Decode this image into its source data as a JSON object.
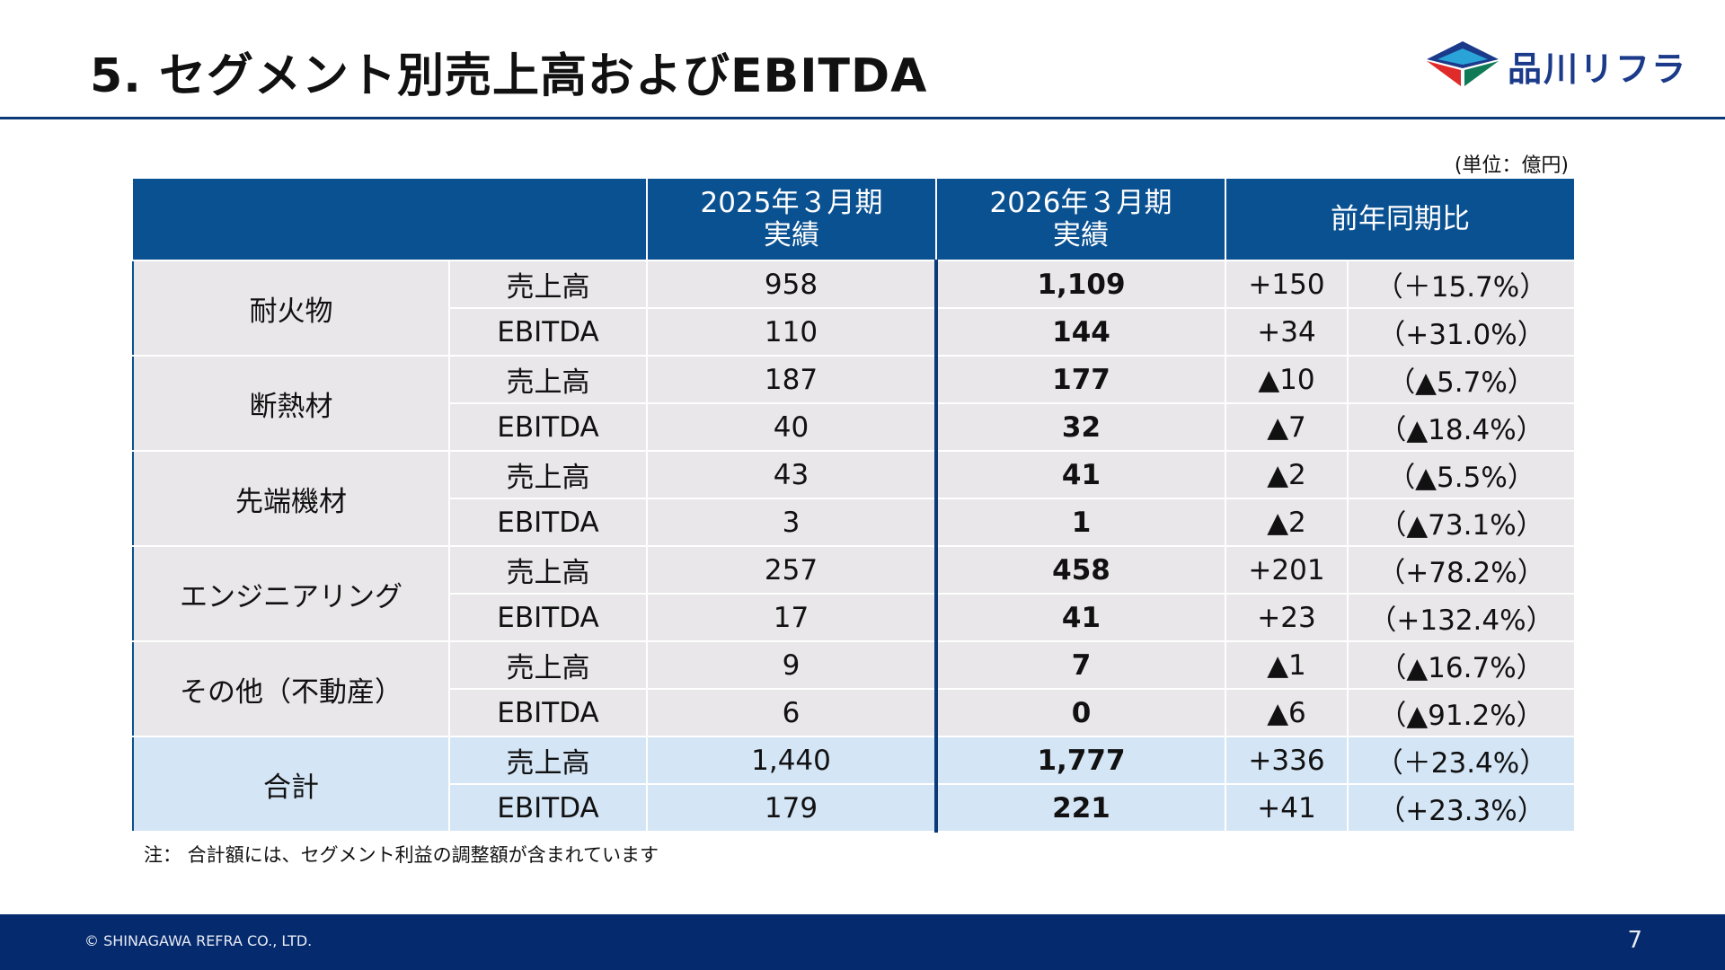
{
  "title": "5. セグメント別売上高およびEBITDA",
  "logo": {
    "text": "品川リフラ",
    "colors": [
      "#1b3a8a",
      "#2aa3d8",
      "#e02b2b",
      "#0f7a55"
    ]
  },
  "unit": "(単位：億円)",
  "table": {
    "headers": {
      "fy2025": {
        "line1": "2025年３月期",
        "line2": "実績"
      },
      "fy2026": {
        "line1": "2026年３月期",
        "line2": "実績"
      },
      "yoy": "前年同期比"
    },
    "segments": [
      {
        "name": "耐火物",
        "rows": [
          {
            "item": "売上高",
            "fy2025": "958",
            "fy2026": "1,109",
            "diff": "+150",
            "pct": "（＋15.7%）"
          },
          {
            "item": "EBITDA",
            "fy2025": "110",
            "fy2026": "144",
            "diff": "+34",
            "pct": "（+31.0%）"
          }
        ]
      },
      {
        "name": "断熱材",
        "rows": [
          {
            "item": "売上高",
            "fy2025": "187",
            "fy2026": "177",
            "diff": "▲10",
            "pct": "（▲5.7%）"
          },
          {
            "item": "EBITDA",
            "fy2025": "40",
            "fy2026": "32",
            "diff": "▲7",
            "pct": "（▲18.4%）"
          }
        ]
      },
      {
        "name": "先端機材",
        "rows": [
          {
            "item": "売上高",
            "fy2025": "43",
            "fy2026": "41",
            "diff": "▲2",
            "pct": "（▲5.5%）"
          },
          {
            "item": "EBITDA",
            "fy2025": "3",
            "fy2026": "1",
            "diff": "▲2",
            "pct": "（▲73.1%）"
          }
        ]
      },
      {
        "name": "エンジニアリング",
        "rows": [
          {
            "item": "売上高",
            "fy2025": "257",
            "fy2026": "458",
            "diff": "+201",
            "pct": "（+78.2%）"
          },
          {
            "item": "EBITDA",
            "fy2025": "17",
            "fy2026": "41",
            "diff": "+23",
            "pct": "（+132.4%）"
          }
        ]
      },
      {
        "name": "その他（不動産）",
        "rows": [
          {
            "item": "売上高",
            "fy2025": "9",
            "fy2026": "7",
            "diff": "▲1",
            "pct": "（▲16.7%）"
          },
          {
            "item": "EBITDA",
            "fy2025": "6",
            "fy2026": "0",
            "diff": "▲6",
            "pct": "（▲91.2%）"
          }
        ]
      },
      {
        "name": "合計",
        "total": true,
        "rows": [
          {
            "item": "売上高",
            "fy2025": "1,440",
            "fy2026": "1,777",
            "diff": "+336",
            "pct": "（＋23.4%）"
          },
          {
            "item": "EBITDA",
            "fy2025": "179",
            "fy2026": "221",
            "diff": "+41",
            "pct": "（+23.3%）"
          }
        ]
      }
    ]
  },
  "note": "注： 合計額には、セグメント利益の調整額が含まれています",
  "footer": {
    "copyright": "© SHINAGAWA REFRA CO., LTD.",
    "page": "7"
  }
}
